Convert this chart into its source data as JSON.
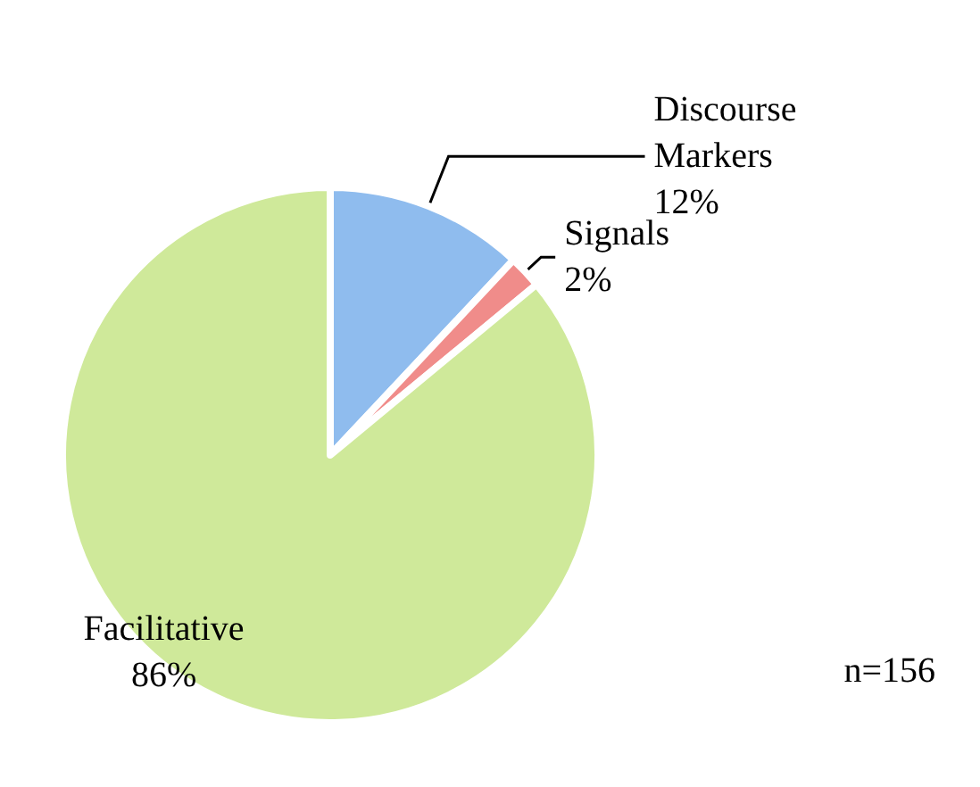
{
  "chart_data": {
    "type": "pie",
    "categories": [
      "Discourse Markers",
      "Signals",
      "Facilitative"
    ],
    "values": [
      12,
      2,
      86
    ],
    "value_labels": [
      "12%",
      "2%",
      "86%"
    ],
    "colors": [
      "#8fbcee",
      "#f08c8a",
      "#cfe99a"
    ],
    "annotations": [
      "n=156"
    ]
  }
}
